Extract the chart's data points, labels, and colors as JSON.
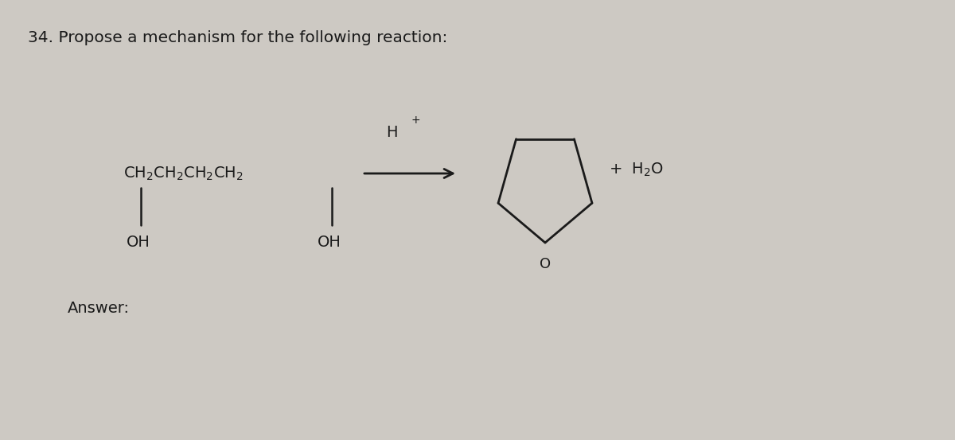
{
  "background_color": "#cdc9c3",
  "title_text": "34. Propose a mechanism for the following reaction:",
  "title_fontsize": 14.5,
  "title_color": "#1a1a1a",
  "reactant_chain": "CH₂CH₂CH₂CH₂",
  "oh_label": "OH",
  "arrow_label": "H",
  "plus_label": "+",
  "h2o_label": "H₂O",
  "oxygen_label": "O",
  "answer_text": "Answer:",
  "bg_light": "#dbd7d1"
}
